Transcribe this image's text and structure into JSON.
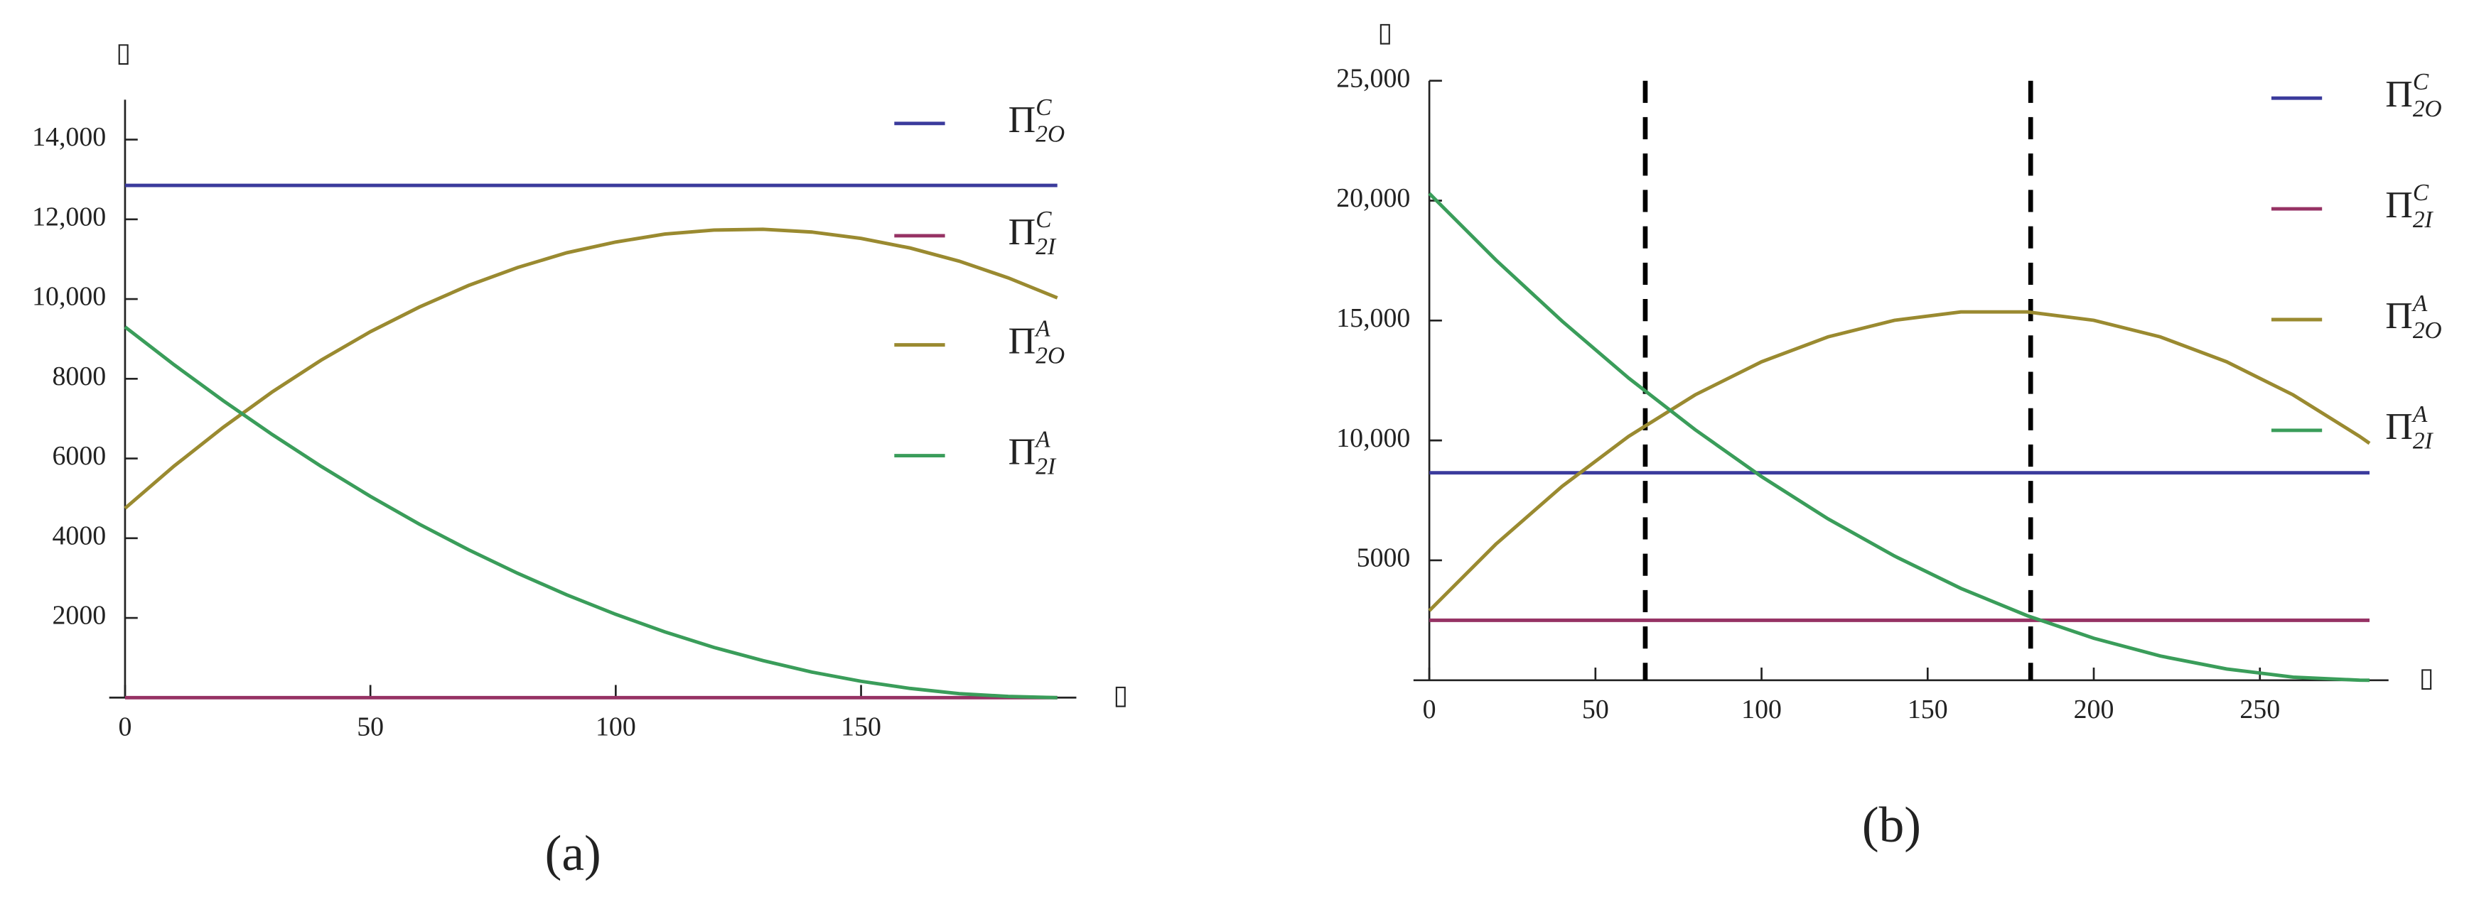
{
  "chart_data": [
    {
      "type": "line",
      "label": "(a)",
      "x_label": "▯",
      "y_label": "▯",
      "x": [
        0,
        10,
        20,
        30,
        40,
        50,
        60,
        70,
        80,
        90,
        100,
        110,
        120,
        130,
        140,
        150,
        160,
        170,
        180,
        190
      ],
      "xlim": [
        0,
        190
      ],
      "xticks": [
        0,
        50,
        100,
        150
      ],
      "ylim": [
        0,
        15000
      ],
      "yticks": [
        2000,
        4000,
        6000,
        8000,
        {
          "value": 10000,
          "label": "10,000"
        },
        {
          "value": 12000,
          "label": "12,000"
        },
        {
          "value": 14000,
          "label": "14,000"
        }
      ],
      "series": [
        {
          "name": "Π",
          "superscript": "C",
          "subscript": "2O",
          "color": "#3b3b9c",
          "values": [
            12850,
            12850,
            12850,
            12850,
            12850,
            12850,
            12850,
            12850,
            12850,
            12850,
            12850,
            12850,
            12850,
            12850,
            12850,
            12850,
            12850,
            12850,
            12850,
            12850
          ]
        },
        {
          "name": "Π",
          "superscript": "C",
          "subscript": "2I",
          "color": "#963264",
          "values": [
            0,
            0,
            0,
            0,
            0,
            0,
            0,
            0,
            0,
            0,
            0,
            0,
            0,
            0,
            0,
            0,
            0,
            0,
            0,
            0
          ]
        },
        {
          "name": "Π",
          "superscript": "A",
          "subscript": "2O",
          "color": "#9a8a30",
          "values": [
            4750,
            5810,
            6780,
            7670,
            8470,
            9180,
            9800,
            10340,
            10790,
            11160,
            11430,
            11630,
            11730,
            11750,
            11680,
            11520,
            11280,
            10950,
            10530,
            10030
          ]
        },
        {
          "name": "Π",
          "superscript": "A",
          "subscript": "2I",
          "color": "#3a9d5a",
          "values": [
            9300,
            8350,
            7450,
            6600,
            5800,
            5050,
            4350,
            3710,
            3120,
            2580,
            2090,
            1650,
            1260,
            930,
            640,
            410,
            230,
            100,
            30,
            0
          ]
        }
      ]
    },
    {
      "type": "line",
      "label": "(b)",
      "x_label": "▯",
      "y_label": "▯",
      "x": [
        0,
        20,
        40,
        60,
        80,
        100,
        120,
        140,
        160,
        180,
        200,
        220,
        240,
        260,
        280,
        283
      ],
      "xlim": [
        0,
        283
      ],
      "xticks": [
        0,
        50,
        100,
        150,
        200,
        250
      ],
      "ylim": [
        0,
        25000
      ],
      "yticks": [
        5000,
        {
          "value": 10000,
          "label": "10,000"
        },
        {
          "value": 15000,
          "label": "15,000"
        },
        {
          "value": 20000,
          "label": "20,000"
        },
        {
          "value": 25000,
          "label": "25,000"
        }
      ],
      "vlines": [
        65,
        181
      ],
      "series": [
        {
          "name": "Π",
          "superscript": "C",
          "subscript": "2O",
          "color": "#3b3b9c",
          "values": [
            8650,
            8650,
            8650,
            8650,
            8650,
            8650,
            8650,
            8650,
            8650,
            8650,
            8650,
            8650,
            8650,
            8650,
            8650,
            8650
          ]
        },
        {
          "name": "Π",
          "superscript": "C",
          "subscript": "2I",
          "color": "#963264",
          "values": [
            2500,
            2500,
            2500,
            2500,
            2500,
            2500,
            2500,
            2500,
            2500,
            2500,
            2500,
            2500,
            2500,
            2500,
            2500,
            2500
          ]
        },
        {
          "name": "Π",
          "superscript": "A",
          "subscript": "2O",
          "color": "#9a8a30",
          "values": [
            2900,
            5670,
            8090,
            10170,
            11900,
            13280,
            14320,
            15010,
            15360,
            15360,
            15010,
            14320,
            13280,
            11900,
            10170,
            9880
          ]
        },
        {
          "name": "Π",
          "superscript": "A",
          "subscript": "2I",
          "color": "#3a9d5a",
          "values": [
            20300,
            17530,
            14970,
            12600,
            10450,
            8490,
            6730,
            5180,
            3830,
            2690,
            1750,
            1010,
            470,
            130,
            2,
            0
          ]
        }
      ]
    }
  ]
}
